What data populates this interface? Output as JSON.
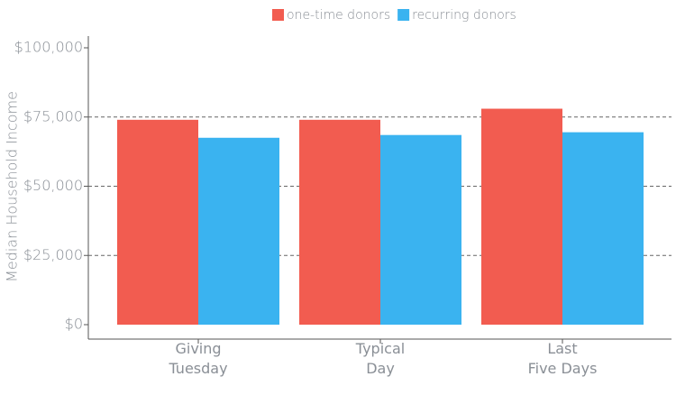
{
  "chart_data": {
    "type": "bar",
    "y_label": "Median Household Income",
    "categories": [
      "Giving\nTuesday",
      "Typical\nDay",
      "Last\nFive Days"
    ],
    "series": [
      {
        "name": "one-time donors",
        "color": "#f25c50",
        "values": [
          74000,
          74000,
          78000
        ]
      },
      {
        "name": "recurring donors",
        "color": "#3ab3f0",
        "values": [
          67500,
          68500,
          69500
        ]
      }
    ],
    "ylim": [
      0,
      100000
    ],
    "yticks": [
      {
        "value": 0,
        "label": "$0"
      },
      {
        "value": 25000,
        "label": "$25,000"
      },
      {
        "value": 50000,
        "label": "$50,000"
      },
      {
        "value": 75000,
        "label": "$75,000"
      },
      {
        "value": 100000,
        "label": "$100,000"
      }
    ],
    "grid": true
  }
}
